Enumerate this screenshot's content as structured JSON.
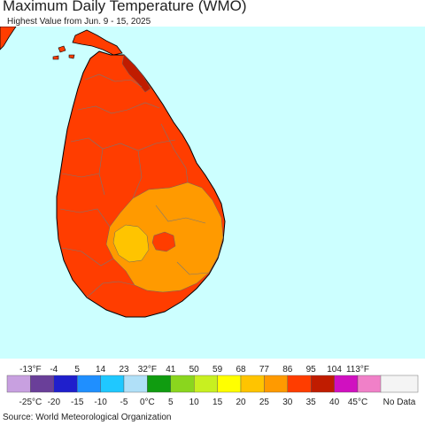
{
  "header": {
    "title": "Maximum Daily Temperature (WMO)",
    "subtitle": "Highest Value from Jun. 9 - 15, 2025"
  },
  "legend": {
    "fahrenheit_labels": [
      "-13°F",
      "-4",
      "5",
      "14",
      "23",
      "32°F",
      "41",
      "50",
      "59",
      "68",
      "77",
      "86",
      "95",
      "104",
      "113°F"
    ],
    "celsius_labels": [
      "-25°C",
      "-20",
      "-15",
      "-10",
      "-5",
      "0°C",
      "5",
      "10",
      "15",
      "20",
      "25",
      "30",
      "35",
      "40",
      "45°C"
    ],
    "colors": [
      "#c8a0e0",
      "#6a3f99",
      "#1f1fcc",
      "#1f8fff",
      "#1fc8ff",
      "#b0e0f8",
      "#109c10",
      "#8ad61e",
      "#c8f020",
      "#ffff00",
      "#ffc400",
      "#ff9a00",
      "#ff3d00",
      "#c01c00",
      "#d010c0",
      "#f080c8"
    ],
    "no_data_label": "No Data",
    "no_data_color": "#f4f4f4"
  },
  "map": {
    "ocean_color": "#ccffff",
    "land_colors": {
      "hot_30_35": "#ff3d00",
      "very_hot_35_40": "#c01c00",
      "warm_25_30": "#ff9a00",
      "mild_20_25": "#ffc400"
    }
  },
  "footer": {
    "source": "Source: World Meteorological Organization"
  }
}
